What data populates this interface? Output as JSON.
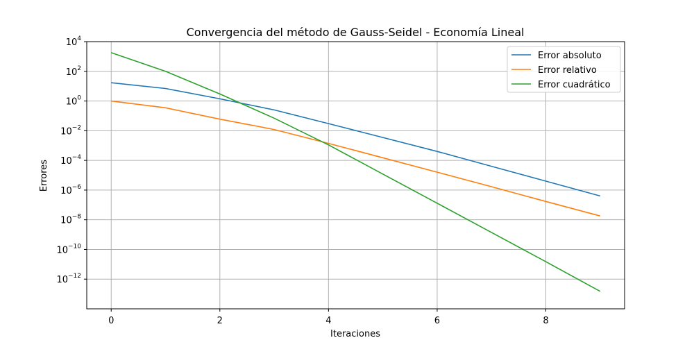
{
  "chart_data": {
    "type": "line",
    "title": "Convergencia del método de Gauss-Seidel - Economía Lineal",
    "xlabel": "Iteraciones",
    "ylabel": "Errores",
    "y_scale": "log",
    "xlim": [
      -0.45,
      9.45
    ],
    "ylim": [
      1e-14,
      10000.0
    ],
    "x_ticks": [
      0,
      2,
      4,
      6,
      8
    ],
    "y_ticks": [
      {
        "base": "10",
        "exp": "4",
        "value": 10000.0
      },
      {
        "base": "10",
        "exp": "2",
        "value": 100.0
      },
      {
        "base": "10",
        "exp": "0",
        "value": 1
      },
      {
        "base": "10",
        "exp": "−2",
        "value": 0.01
      },
      {
        "base": "10",
        "exp": "−4",
        "value": 0.0001
      },
      {
        "base": "10",
        "exp": "−6",
        "value": 1e-06
      },
      {
        "base": "10",
        "exp": "−8",
        "value": 1e-08
      },
      {
        "base": "10",
        "exp": "−10",
        "value": 1e-10
      },
      {
        "base": "10",
        "exp": "−12",
        "value": 1e-12
      }
    ],
    "grid": true,
    "legend_position": "top-right",
    "x": [
      0,
      1,
      2,
      3,
      4,
      5,
      6,
      7,
      8,
      9
    ],
    "series": [
      {
        "name": "Error absoluto",
        "color": "#1f77b4",
        "values": [
          17,
          7,
          1.4,
          0.25,
          0.03,
          0.0035,
          0.0004,
          4e-05,
          4e-06,
          4e-07
        ]
      },
      {
        "name": "Error relativo",
        "color": "#ff7f0e",
        "values": [
          1,
          0.35,
          0.06,
          0.012,
          0.0014,
          0.00015,
          1.6e-05,
          1.7e-06,
          1.7e-07,
          1.8e-08
        ]
      },
      {
        "name": "Error cuadrático",
        "color": "#2ca02c",
        "values": [
          1800,
          100,
          3,
          0.07,
          0.0011,
          1.2e-05,
          1.3e-07,
          1.4e-09,
          1.5e-11,
          1.5e-13
        ]
      }
    ]
  }
}
